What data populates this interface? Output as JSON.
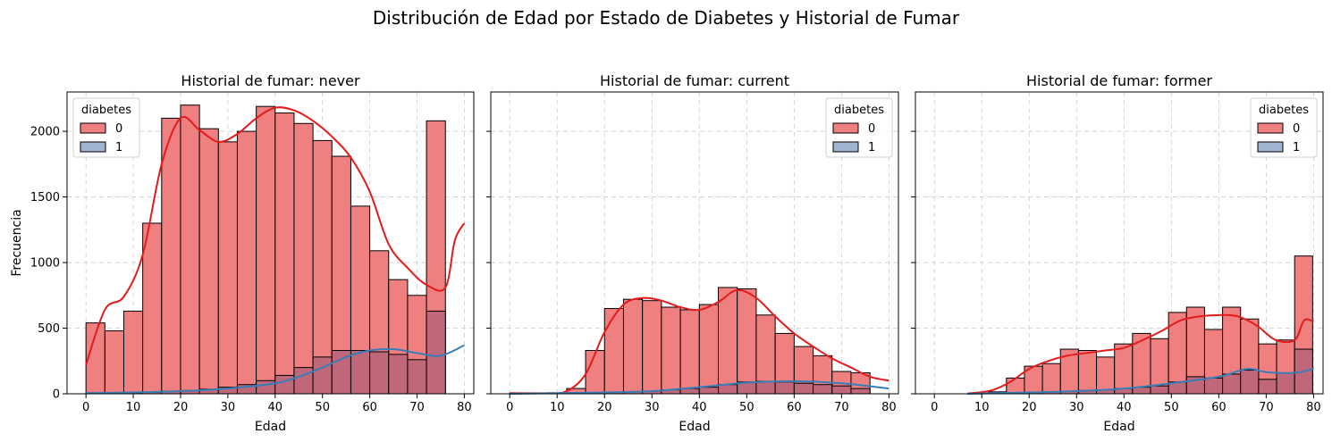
{
  "suptitle": "Distribución de Edad por Estado de Diabetes y Historial de Fumar",
  "colors": {
    "class0_fill": "#f08080",
    "class1_fill": "#a0b4d2",
    "overlap_fill": "#c0687a",
    "class0_line": "#e41a1c",
    "class1_line": "#377eb8",
    "grid": "#cccccc",
    "edge": "#000000"
  },
  "chart_data": [
    {
      "type": "histogram",
      "title": "Historial de fumar: never",
      "xlabel": "Edad",
      "ylabel": "Frecuencia",
      "xlim": [
        -4,
        82
      ],
      "ylim": [
        0,
        2300
      ],
      "xticks": [
        "0",
        "10",
        "20",
        "30",
        "40",
        "50",
        "60",
        "70",
        "80"
      ],
      "yticks": [
        "0",
        "500",
        "1000",
        "1500",
        "2000"
      ],
      "legend": {
        "title": "diabetes",
        "entries": [
          "0",
          "1"
        ],
        "position": "upper-left"
      },
      "bin_start": 0,
      "bin_width": 4,
      "series": [
        {
          "name": "0",
          "values": [
            540,
            480,
            630,
            1300,
            2100,
            2200,
            2020,
            1920,
            2000,
            2190,
            2140,
            2060,
            1930,
            1810,
            1430,
            1090,
            870,
            750,
            2080
          ]
        },
        {
          "name": "1",
          "values": [
            5,
            5,
            8,
            12,
            20,
            25,
            35,
            50,
            70,
            100,
            140,
            200,
            280,
            330,
            330,
            320,
            300,
            260,
            630
          ]
        }
      ],
      "kde": [
        {
          "name": "0",
          "x": [
            0,
            4,
            8,
            12,
            16,
            20,
            24,
            28,
            32,
            36,
            40,
            44,
            48,
            52,
            56,
            60,
            64,
            68,
            72,
            76,
            78,
            80
          ],
          "y": [
            220,
            640,
            740,
            1060,
            1750,
            2100,
            2010,
            1920,
            1980,
            2100,
            2180,
            2160,
            2080,
            1960,
            1800,
            1540,
            1140,
            960,
            830,
            810,
            1170,
            1300
          ]
        },
        {
          "name": "1",
          "x": [
            0,
            10,
            20,
            30,
            40,
            45,
            50,
            55,
            60,
            65,
            70,
            75,
            80
          ],
          "y": [
            5,
            10,
            20,
            40,
            80,
            130,
            200,
            280,
            330,
            340,
            310,
            290,
            370
          ]
        }
      ]
    },
    {
      "type": "histogram",
      "title": "Historial de fumar: current",
      "xlabel": "Edad",
      "ylabel": "",
      "xlim": [
        -4,
        82
      ],
      "ylim": [
        0,
        2300
      ],
      "xticks": [
        "0",
        "10",
        "20",
        "30",
        "40",
        "50",
        "60",
        "70",
        "80"
      ],
      "yticks": [],
      "legend": {
        "title": "diabetes",
        "entries": [
          "0",
          "1"
        ],
        "position": "upper-right"
      },
      "bin_start": 0,
      "bin_width": 4,
      "series": [
        {
          "name": "0",
          "values": [
            5,
            5,
            5,
            40,
            330,
            650,
            720,
            710,
            660,
            640,
            680,
            810,
            800,
            600,
            460,
            360,
            290,
            170,
            160
          ]
        },
        {
          "name": "1",
          "values": [
            0,
            0,
            0,
            2,
            5,
            10,
            15,
            20,
            30,
            40,
            50,
            70,
            90,
            95,
            90,
            80,
            70,
            60,
            40
          ]
        }
      ],
      "kde": [
        {
          "name": "0",
          "x": [
            0,
            8,
            12,
            16,
            20,
            24,
            28,
            32,
            36,
            40,
            44,
            48,
            52,
            56,
            60,
            64,
            68,
            72,
            76,
            80
          ],
          "y": [
            5,
            5,
            20,
            150,
            470,
            680,
            730,
            710,
            660,
            640,
            700,
            790,
            730,
            590,
            460,
            360,
            270,
            200,
            130,
            100
          ]
        },
        {
          "name": "1",
          "x": [
            0,
            20,
            30,
            40,
            50,
            60,
            70,
            80
          ],
          "y": [
            0,
            10,
            20,
            50,
            85,
            95,
            80,
            40
          ]
        }
      ]
    },
    {
      "type": "histogram",
      "title": "Historial de fumar: former",
      "xlabel": "Edad",
      "ylabel": "",
      "xlim": [
        -4,
        82
      ],
      "ylim": [
        0,
        2300
      ],
      "xticks": [
        "0",
        "10",
        "20",
        "30",
        "40",
        "50",
        "60",
        "70",
        "80"
      ],
      "yticks": [],
      "legend": {
        "title": "diabetes",
        "entries": [
          "0",
          "1"
        ],
        "position": "upper-right"
      },
      "bin_start": 0,
      "bin_width": 4,
      "series": [
        {
          "name": "0",
          "values": [
            0,
            0,
            5,
            15,
            120,
            210,
            230,
            340,
            330,
            280,
            380,
            460,
            420,
            620,
            660,
            490,
            660,
            570,
            380,
            410,
            1050
          ]
        },
        {
          "name": "1",
          "values": [
            0,
            0,
            0,
            2,
            5,
            10,
            15,
            20,
            25,
            30,
            40,
            50,
            60,
            90,
            130,
            120,
            150,
            180,
            110,
            160,
            340
          ]
        }
      ],
      "bin_width_override": 3.8,
      "kde": [
        {
          "name": "0",
          "x": [
            7,
            12,
            16,
            20,
            24,
            28,
            32,
            36,
            40,
            44,
            48,
            52,
            56,
            60,
            64,
            68,
            72,
            76,
            78,
            80
          ],
          "y": [
            2,
            25,
            90,
            190,
            250,
            290,
            310,
            330,
            350,
            410,
            480,
            560,
            590,
            600,
            590,
            520,
            410,
            410,
            560,
            550
          ]
        },
        {
          "name": "1",
          "x": [
            7,
            20,
            30,
            40,
            50,
            60,
            66,
            70,
            76,
            80
          ],
          "y": [
            0,
            10,
            20,
            40,
            80,
            130,
            190,
            165,
            160,
            190
          ]
        }
      ]
    }
  ]
}
